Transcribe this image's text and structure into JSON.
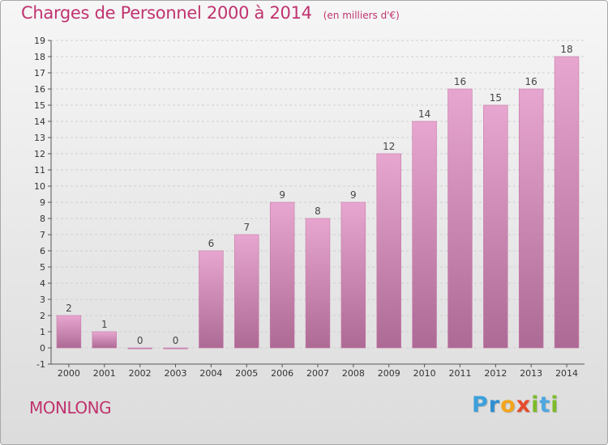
{
  "chart_data": {
    "type": "bar",
    "title": "Charges de Personnel 2000 à 2014",
    "subtitle": "(en milliers d'€)",
    "categories": [
      "2000",
      "2001",
      "2002",
      "2003",
      "2004",
      "2005",
      "2006",
      "2007",
      "2008",
      "2009",
      "2010",
      "2011",
      "2012",
      "2013",
      "2014"
    ],
    "values": [
      2,
      1,
      0,
      0,
      6,
      7,
      9,
      8,
      9,
      12,
      14,
      16,
      15,
      16,
      18
    ],
    "data_labels": [
      "2",
      "1",
      "0",
      "0",
      "6",
      "7",
      "9",
      "8",
      "9",
      "12",
      "14",
      "16",
      "15",
      "16",
      "18"
    ],
    "yticks": [
      "-1",
      "0",
      "1",
      "2",
      "3",
      "4",
      "5",
      "6",
      "7",
      "8",
      "9",
      "10",
      "11",
      "12",
      "13",
      "14",
      "15",
      "16",
      "17",
      "18",
      "19"
    ],
    "ylim": [
      -1,
      19
    ],
    "grid": "horizontal dashed",
    "bar_color": "#d98ab8",
    "text_color": "#c0336f"
  },
  "footer": {
    "commune": "MONLONG",
    "brand_letters": [
      "P",
      "r",
      "o",
      "x",
      "i",
      "t",
      "i"
    ]
  }
}
